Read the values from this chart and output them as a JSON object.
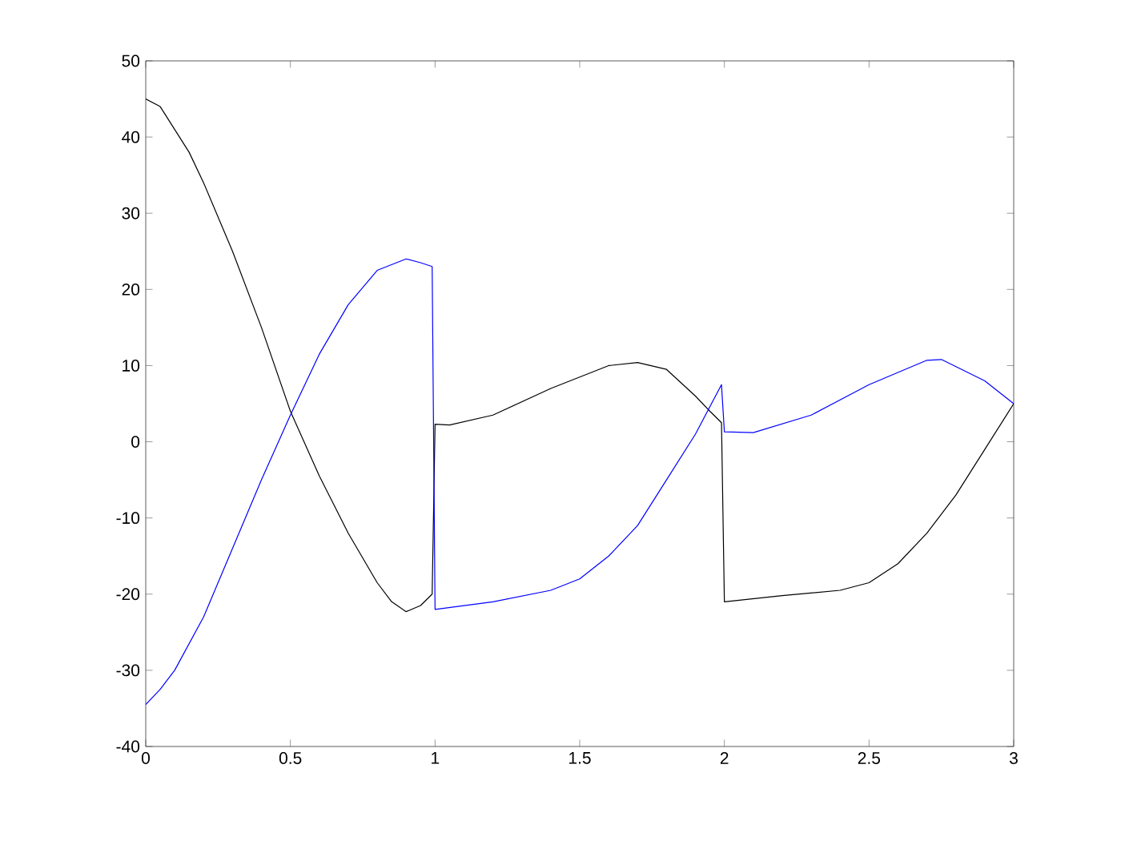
{
  "chart_data": {
    "type": "line",
    "xlim": [
      0,
      3
    ],
    "ylim": [
      -40,
      50
    ],
    "xticks": [
      0,
      0.5,
      1,
      1.5,
      2,
      2.5,
      3
    ],
    "yticks": [
      -40,
      -30,
      -20,
      -10,
      0,
      10,
      20,
      30,
      40,
      50
    ],
    "grid": false,
    "marker": "none",
    "line_style": "solid",
    "series": [
      {
        "color": "#000000",
        "x": [
          0,
          0.05,
          0.1,
          0.15,
          0.2,
          0.3,
          0.4,
          0.5,
          0.6,
          0.7,
          0.8,
          0.85,
          0.9,
          0.95,
          0.99,
          1.0,
          1.05,
          1.2,
          1.4,
          1.6,
          1.7,
          1.8,
          1.9,
          1.95,
          1.99,
          2.0,
          2.2,
          2.4,
          2.5,
          2.6,
          2.7,
          2.8,
          2.9,
          3.0
        ],
        "values": [
          45,
          44,
          41,
          38,
          34,
          25,
          15,
          4,
          -4.5,
          -12,
          -18.5,
          -21,
          -22.3,
          -21.5,
          -20,
          2.3,
          2.2,
          3.5,
          7,
          10,
          10.4,
          9.5,
          6,
          4,
          2.5,
          -21,
          -20.2,
          -19.5,
          -18.5,
          -16,
          -12,
          -7,
          -1,
          5
        ]
      },
      {
        "color": "#0000ff",
        "x": [
          0,
          0.05,
          0.1,
          0.2,
          0.3,
          0.4,
          0.5,
          0.6,
          0.7,
          0.8,
          0.9,
          0.95,
          0.99,
          1.0,
          1.2,
          1.4,
          1.5,
          1.6,
          1.7,
          1.8,
          1.9,
          1.99,
          2.0,
          2.1,
          2.3,
          2.5,
          2.7,
          2.75,
          2.9,
          3.0
        ],
        "values": [
          -34.5,
          -32.5,
          -30,
          -23,
          -14,
          -5,
          3.5,
          11.5,
          18,
          22.5,
          24,
          23.5,
          23,
          -22,
          -21,
          -19.5,
          -18,
          -15,
          -11,
          -5,
          1,
          7.5,
          1.3,
          1.2,
          3.5,
          7.5,
          10.7,
          10.8,
          8,
          5
        ]
      }
    ]
  }
}
